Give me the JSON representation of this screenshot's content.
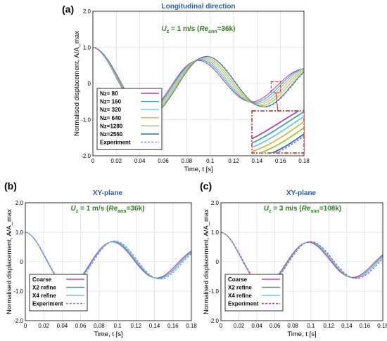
{
  "panel_labels": [
    "(a)",
    "(b)",
    "(c)"
  ],
  "condition_a": {
    "prefix": "U",
    "sub": "z",
    "mid": " = 1 m/s (",
    "re": "Re",
    "re_sub": "ann",
    "suffix": "=36k)"
  },
  "condition_b": {
    "prefix": "U",
    "sub": "z",
    "mid": " = 1 m/s (",
    "re": "Re",
    "re_sub": "ann",
    "suffix": "=36k)"
  },
  "condition_c": {
    "prefix": "U",
    "sub": "z",
    "mid": " = 3 m/s (",
    "re": "Re",
    "re_sub": "ann",
    "suffix": "=108k)"
  },
  "chart_data": [
    {
      "type": "line",
      "title": "Longitudinal direction",
      "xlabel": "Time, t [s]",
      "ylabel": "Normalised displacement, A/A_max",
      "xlim": [
        0,
        0.18
      ],
      "ylim": [
        -2.0,
        2.0
      ],
      "xticks": [
        "0",
        "0.02",
        "0.04",
        "0.06",
        "0.08",
        "0.1",
        "0.12",
        "0.14",
        "0.16",
        "0.18"
      ],
      "yticks": [
        "-2.0",
        "-1.0",
        "0",
        "1.0",
        "2.0"
      ],
      "grid": true,
      "legend_position": "bottom-left",
      "inset": "zoom of 0.15-0.16 s region",
      "series": [
        {
          "name": "Nz=   80",
          "color": "#b040c8",
          "freq_hz": 11.0,
          "decay": 5.0
        },
        {
          "name": "Nz= 160",
          "color": "#3aa6a0",
          "freq_hz": 10.85,
          "decay": 4.6
        },
        {
          "name": "Nz= 320",
          "color": "#6cc6e8",
          "freq_hz": 10.7,
          "decay": 4.2
        },
        {
          "name": "Nz= 640",
          "color": "#e8b040",
          "freq_hz": 10.55,
          "decay": 3.8
        },
        {
          "name": "Nz=1280",
          "color": "#98c840",
          "freq_hz": 10.4,
          "decay": 3.4
        },
        {
          "name": "Nz=2560",
          "color": "#3070a8",
          "freq_hz": 10.25,
          "decay": 3.0
        },
        {
          "name": "Experiment",
          "color": "#9080d0",
          "dashed": true,
          "freq_hz": 10.2,
          "decay": 2.9
        }
      ]
    },
    {
      "type": "line",
      "title": "XY-plane",
      "xlabel": "Time, t [s]",
      "ylabel": "Normalised displacement, A/A_max",
      "xlim": [
        0,
        0.18
      ],
      "ylim": [
        -2.0,
        2.0
      ],
      "xticks": [
        "0",
        "0.02",
        "0.04",
        "0.06",
        "0.08",
        "0.1",
        "0.12",
        "0.14",
        "0.16",
        "0.18"
      ],
      "yticks": [
        "-2.0",
        "-1.0",
        "0",
        "1.0",
        "2.0"
      ],
      "grid": true,
      "legend_position": "bottom-left",
      "series": [
        {
          "name": "Coarse",
          "color": "#c040c8",
          "freq_hz": 10.5,
          "decay": 4.2
        },
        {
          "name": "X2 refine",
          "color": "#3aa6a0",
          "freq_hz": 10.4,
          "decay": 4.0
        },
        {
          "name": "X4 refine",
          "color": "#6cc6e8",
          "freq_hz": 10.3,
          "decay": 3.8
        },
        {
          "name": "Experiment",
          "color": "#9080d0",
          "dashed": true,
          "freq_hz": 10.2,
          "decay": 3.6
        }
      ]
    },
    {
      "type": "line",
      "title": "XY-plane",
      "xlabel": "Time, t [s]",
      "ylabel": "Normalised displacement, A/A_max",
      "xlim": [
        0,
        0.18
      ],
      "ylim": [
        -2.0,
        2.0
      ],
      "xticks": [
        "0",
        "0.02",
        "0.04",
        "0.06",
        "0.08",
        "0.1",
        "0.12",
        "0.14",
        "0.16",
        "0.18"
      ],
      "yticks": [
        "-2.0",
        "-1.0",
        "0",
        "1.0",
        "2.0"
      ],
      "grid": true,
      "legend_position": "bottom-left",
      "series": [
        {
          "name": "Coarse",
          "color": "#c040c8",
          "freq_hz": 10.2,
          "decay": 4.3
        },
        {
          "name": "X2 refine",
          "color": "#3aa6a0",
          "freq_hz": 10.1,
          "decay": 4.1
        },
        {
          "name": "X4 refine",
          "color": "#6cc6e8",
          "freq_hz": 10.0,
          "decay": 3.9
        },
        {
          "name": "Experiment",
          "color": "#d04070",
          "dashed": true,
          "freq_hz": 9.9,
          "decay": 3.8
        }
      ]
    }
  ]
}
